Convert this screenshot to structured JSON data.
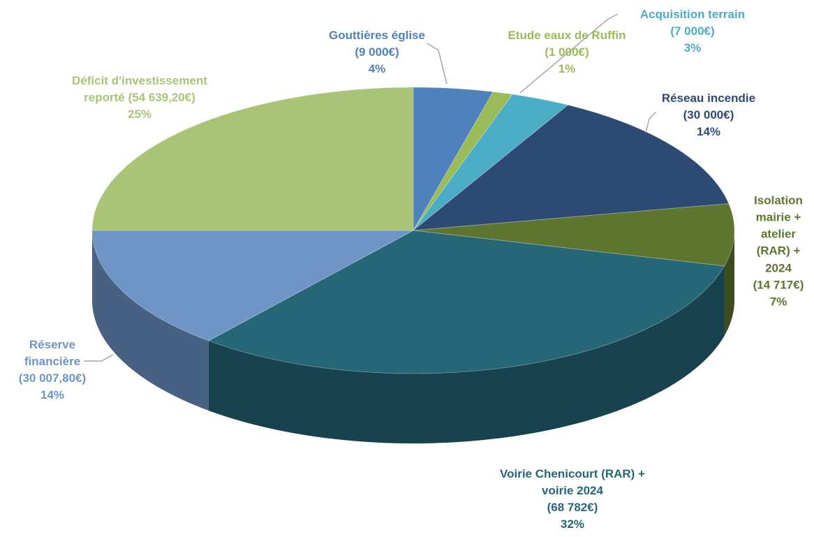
{
  "chart_data": {
    "type": "pie",
    "categories": [
      "Gouttières église",
      "Etude eaux de Ruffin",
      "Acquisition terrain",
      "Réseau incendie",
      "Isolation mairie + atelier (RAR) + 2024",
      "Voirie Chenicourt (RAR) + voirie 2024",
      "Réserve financière",
      "Déficit d'investissement reporté"
    ],
    "amounts": [
      "(9 000€)",
      "(1 000€)",
      "(7 000€)",
      "(30 000€)",
      "(14 717€)",
      "(68 782€)",
      "(30 007,80€)",
      "(54 639,20€)"
    ],
    "values": [
      4,
      1,
      3,
      14,
      7,
      32,
      14,
      25
    ],
    "value_labels": [
      "4%",
      "1%",
      "3%",
      "14%",
      "7%",
      "32%",
      "14%",
      "25%"
    ],
    "colors": [
      "#4f81bd",
      "#9bbb59",
      "#4bacc6",
      "#2c4a74",
      "#5e7530",
      "#256677",
      "#6f94c6",
      "#a9c476"
    ]
  }
}
